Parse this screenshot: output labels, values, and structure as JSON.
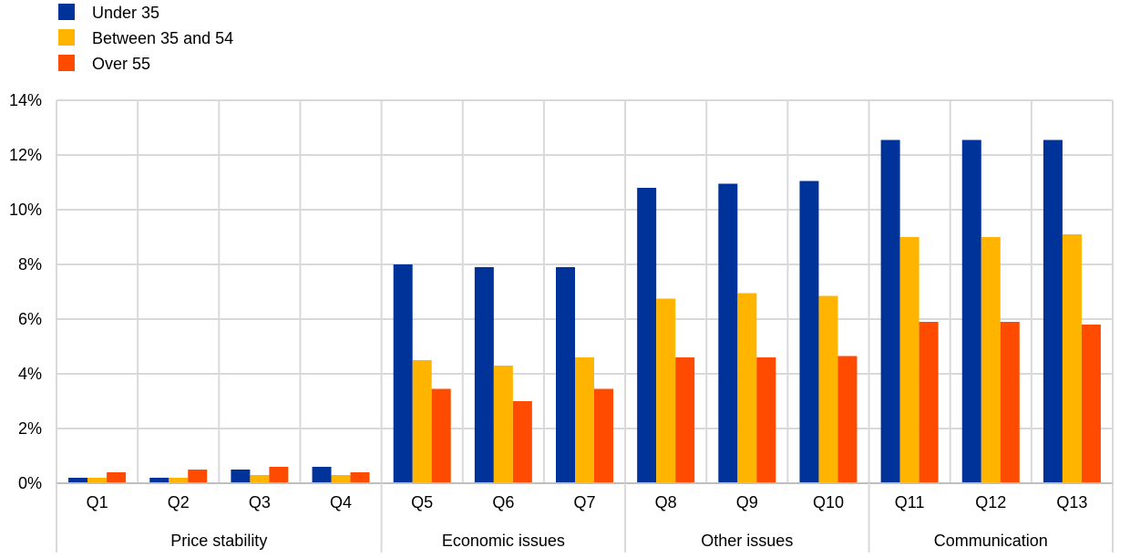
{
  "chart_data": {
    "type": "bar",
    "categories": [
      "Q1",
      "Q2",
      "Q3",
      "Q4",
      "Q5",
      "Q6",
      "Q7",
      "Q8",
      "Q9",
      "Q10",
      "Q11",
      "Q12",
      "Q13"
    ],
    "groups": [
      {
        "label": "Price stability",
        "categories": [
          "Q1",
          "Q2",
          "Q3",
          "Q4"
        ]
      },
      {
        "label": "Economic issues",
        "categories": [
          "Q5",
          "Q6",
          "Q7"
        ]
      },
      {
        "label": "Other issues",
        "categories": [
          "Q8",
          "Q9",
          "Q10"
        ]
      },
      {
        "label": "Communication",
        "categories": [
          "Q11",
          "Q12",
          "Q13"
        ]
      }
    ],
    "series": [
      {
        "name": "Under 35",
        "color": "#003399",
        "values": [
          0.2,
          0.2,
          0.5,
          0.6,
          8.0,
          7.9,
          7.9,
          10.8,
          10.95,
          11.05,
          12.55,
          12.55,
          12.55
        ]
      },
      {
        "name": "Between 35 and 54",
        "color": "#FFB400",
        "values": [
          0.2,
          0.2,
          0.3,
          0.3,
          4.5,
          4.3,
          4.6,
          6.75,
          6.95,
          6.85,
          9.0,
          9.0,
          9.1
        ]
      },
      {
        "name": "Over 55",
        "color": "#FF4B00",
        "values": [
          0.4,
          0.5,
          0.6,
          0.4,
          3.45,
          3.0,
          3.45,
          4.6,
          4.6,
          4.65,
          5.9,
          5.9,
          5.8
        ]
      }
    ],
    "ylim": [
      0,
      14
    ],
    "y_ticks": [
      "0%",
      "2%",
      "4%",
      "6%",
      "8%",
      "10%",
      "12%",
      "14%"
    ],
    "y_tick_values": [
      0,
      2,
      4,
      6,
      8,
      10,
      12,
      14
    ],
    "grid": true,
    "legend_position": "top-left",
    "title": "",
    "xlabel": "",
    "ylabel": ""
  }
}
